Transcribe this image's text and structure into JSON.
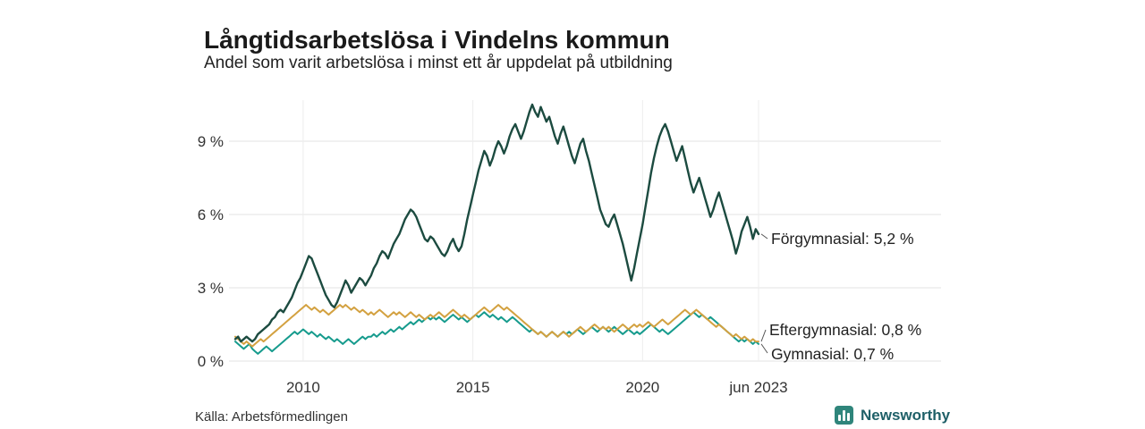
{
  "page": {
    "title": "Långtidsarbetslösa i Vindelns kommun",
    "subtitle": "Andel som varit arbetslösa i minst ett år uppdelat på utbildning",
    "source": "Källa: Arbetsförmedlingen",
    "brand": "Newsworthy"
  },
  "chart_data": {
    "type": "line",
    "title": "Långtidsarbetslösa i Vindelns kommun",
    "subtitle": "Andel som varit arbetslösa i minst ett år uppdelat på utbildning",
    "x_start": "2008-01",
    "x_end": "2023-06",
    "x_frequency": "monthly",
    "ylim": [
      0,
      10.8
    ],
    "grid": true,
    "y_ticks": [
      {
        "label": "0 %",
        "value": 0
      },
      {
        "label": "3 %",
        "value": 3
      },
      {
        "label": "6 %",
        "value": 6
      },
      {
        "label": "9 %",
        "value": 9
      }
    ],
    "x_ticks": [
      {
        "label": "2010",
        "index": 24
      },
      {
        "label": "2015",
        "index": 84
      },
      {
        "label": "2020",
        "index": 144
      },
      {
        "label": "jun 2023",
        "index": 185
      }
    ],
    "series": [
      {
        "name": "Förgymnasial",
        "color": "#1c4b40",
        "end_value": "5,2 %",
        "end_label": "Förgymnasial: 5,2 %",
        "values": [
          0.9,
          1.0,
          0.8,
          0.9,
          1.0,
          0.9,
          0.8,
          0.9,
          1.1,
          1.2,
          1.3,
          1.4,
          1.5,
          1.7,
          1.8,
          2.0,
          2.1,
          2.0,
          2.2,
          2.4,
          2.6,
          2.9,
          3.2,
          3.4,
          3.7,
          4.0,
          4.3,
          4.2,
          3.9,
          3.6,
          3.3,
          3.0,
          2.7,
          2.5,
          2.3,
          2.2,
          2.4,
          2.7,
          3.0,
          3.3,
          3.1,
          2.8,
          3.0,
          3.2,
          3.4,
          3.3,
          3.1,
          3.3,
          3.5,
          3.8,
          4.0,
          4.3,
          4.5,
          4.4,
          4.2,
          4.5,
          4.8,
          5.0,
          5.2,
          5.5,
          5.8,
          6.0,
          6.2,
          6.1,
          5.9,
          5.6,
          5.3,
          5.0,
          4.9,
          5.1,
          5.0,
          4.8,
          4.6,
          4.4,
          4.3,
          4.5,
          4.8,
          5.0,
          4.7,
          4.5,
          4.7,
          5.2,
          5.8,
          6.3,
          6.8,
          7.3,
          7.8,
          8.2,
          8.6,
          8.4,
          8.0,
          8.3,
          8.7,
          9.0,
          8.8,
          8.5,
          8.8,
          9.2,
          9.5,
          9.7,
          9.4,
          9.1,
          9.4,
          9.8,
          10.2,
          10.5,
          10.2,
          10.0,
          10.4,
          10.1,
          9.8,
          10.0,
          9.6,
          9.2,
          8.9,
          9.3,
          9.6,
          9.2,
          8.8,
          8.4,
          8.1,
          8.5,
          8.9,
          9.1,
          8.6,
          8.2,
          7.7,
          7.2,
          6.7,
          6.2,
          5.9,
          5.6,
          5.5,
          5.8,
          6.0,
          5.6,
          5.2,
          4.8,
          4.3,
          3.8,
          3.3,
          3.8,
          4.4,
          5.0,
          5.6,
          6.3,
          7.0,
          7.7,
          8.3,
          8.8,
          9.2,
          9.5,
          9.7,
          9.4,
          9.0,
          8.6,
          8.2,
          8.5,
          8.8,
          8.3,
          7.8,
          7.3,
          6.9,
          7.2,
          7.5,
          7.1,
          6.7,
          6.3,
          5.9,
          6.2,
          6.6,
          6.9,
          6.5,
          6.1,
          5.7,
          5.3,
          4.9,
          4.4,
          4.8,
          5.3,
          5.6,
          5.9,
          5.5,
          5.0,
          5.4,
          5.2
        ]
      },
      {
        "name": "Eftergymnasial",
        "color": "#d3a140",
        "end_value": "0,8 %",
        "end_label": "Eftergymnasial: 0,8 %",
        "values": [
          1.0,
          0.9,
          0.8,
          0.7,
          0.8,
          0.7,
          0.6,
          0.7,
          0.8,
          0.9,
          0.8,
          0.9,
          1.0,
          1.1,
          1.2,
          1.3,
          1.4,
          1.5,
          1.6,
          1.7,
          1.8,
          1.9,
          2.0,
          2.1,
          2.2,
          2.3,
          2.2,
          2.1,
          2.2,
          2.1,
          2.0,
          2.1,
          2.0,
          1.9,
          2.0,
          2.1,
          2.2,
          2.3,
          2.2,
          2.3,
          2.2,
          2.1,
          2.2,
          2.1,
          2.0,
          2.1,
          2.0,
          1.9,
          2.0,
          1.9,
          2.0,
          2.1,
          2.0,
          1.9,
          1.8,
          1.9,
          2.0,
          1.9,
          2.0,
          1.9,
          1.8,
          1.9,
          2.0,
          1.9,
          1.8,
          1.9,
          1.8,
          1.7,
          1.8,
          1.9,
          1.8,
          1.9,
          2.0,
          1.9,
          1.8,
          1.9,
          2.0,
          2.1,
          2.0,
          1.9,
          1.8,
          1.9,
          1.8,
          1.7,
          1.8,
          1.9,
          2.0,
          2.1,
          2.2,
          2.1,
          2.0,
          2.1,
          2.2,
          2.3,
          2.2,
          2.1,
          2.2,
          2.1,
          2.0,
          1.9,
          1.8,
          1.7,
          1.6,
          1.5,
          1.4,
          1.3,
          1.2,
          1.1,
          1.2,
          1.1,
          1.0,
          1.1,
          1.2,
          1.1,
          1.0,
          1.1,
          1.2,
          1.1,
          1.0,
          1.1,
          1.2,
          1.3,
          1.4,
          1.3,
          1.2,
          1.3,
          1.4,
          1.5,
          1.4,
          1.3,
          1.4,
          1.3,
          1.4,
          1.3,
          1.2,
          1.3,
          1.4,
          1.5,
          1.4,
          1.3,
          1.4,
          1.5,
          1.4,
          1.5,
          1.4,
          1.5,
          1.6,
          1.5,
          1.4,
          1.5,
          1.6,
          1.7,
          1.6,
          1.5,
          1.6,
          1.7,
          1.8,
          1.9,
          2.0,
          2.1,
          2.0,
          1.9,
          2.0,
          2.1,
          2.0,
          1.9,
          1.8,
          1.7,
          1.6,
          1.5,
          1.4,
          1.5,
          1.4,
          1.3,
          1.2,
          1.1,
          1.0,
          1.1,
          1.0,
          0.9,
          1.0,
          0.9,
          0.8,
          0.9,
          0.8,
          0.8
        ]
      },
      {
        "name": "Gymnasial",
        "color": "#169b8d",
        "end_value": "0,7 %",
        "end_label": "Gymnasial: 0,7 %",
        "values": [
          0.8,
          0.7,
          0.6,
          0.5,
          0.6,
          0.7,
          0.5,
          0.4,
          0.3,
          0.4,
          0.5,
          0.6,
          0.5,
          0.4,
          0.5,
          0.6,
          0.7,
          0.8,
          0.9,
          1.0,
          1.1,
          1.2,
          1.1,
          1.2,
          1.3,
          1.2,
          1.1,
          1.2,
          1.1,
          1.0,
          1.1,
          1.0,
          0.9,
          1.0,
          0.9,
          0.8,
          0.9,
          0.8,
          0.7,
          0.8,
          0.9,
          0.8,
          0.7,
          0.8,
          0.9,
          1.0,
          0.9,
          1.0,
          1.0,
          1.1,
          1.0,
          1.1,
          1.2,
          1.1,
          1.2,
          1.3,
          1.2,
          1.3,
          1.4,
          1.3,
          1.4,
          1.5,
          1.6,
          1.5,
          1.6,
          1.7,
          1.6,
          1.7,
          1.8,
          1.7,
          1.8,
          1.7,
          1.8,
          1.7,
          1.6,
          1.7,
          1.8,
          1.9,
          1.8,
          1.7,
          1.8,
          1.7,
          1.6,
          1.7,
          1.8,
          1.9,
          1.8,
          1.9,
          2.0,
          1.9,
          1.8,
          1.9,
          1.8,
          1.7,
          1.8,
          1.7,
          1.6,
          1.7,
          1.8,
          1.7,
          1.6,
          1.5,
          1.4,
          1.3,
          1.2,
          1.3,
          1.2,
          1.1,
          1.2,
          1.1,
          1.0,
          1.1,
          1.2,
          1.1,
          1.0,
          1.1,
          1.2,
          1.1,
          1.2,
          1.1,
          1.2,
          1.3,
          1.2,
          1.1,
          1.2,
          1.3,
          1.4,
          1.3,
          1.2,
          1.3,
          1.4,
          1.3,
          1.2,
          1.3,
          1.4,
          1.3,
          1.2,
          1.1,
          1.2,
          1.3,
          1.2,
          1.1,
          1.2,
          1.1,
          1.2,
          1.3,
          1.4,
          1.5,
          1.4,
          1.3,
          1.2,
          1.3,
          1.2,
          1.1,
          1.2,
          1.3,
          1.4,
          1.5,
          1.6,
          1.7,
          1.8,
          1.9,
          2.0,
          1.9,
          1.8,
          1.9,
          1.8,
          1.7,
          1.8,
          1.7,
          1.6,
          1.5,
          1.4,
          1.3,
          1.2,
          1.1,
          1.0,
          0.9,
          0.8,
          0.9,
          0.8,
          0.9,
          0.8,
          0.7,
          0.8,
          0.7
        ]
      }
    ]
  }
}
